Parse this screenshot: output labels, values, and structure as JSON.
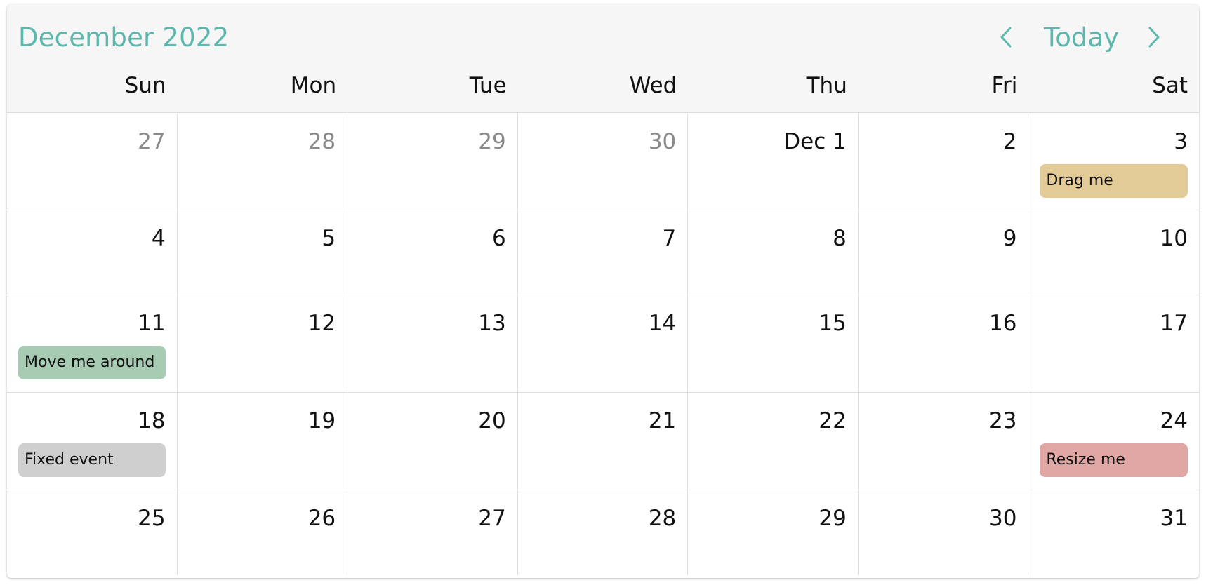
{
  "header": {
    "title": "December 2022",
    "today_label": "Today",
    "prev_icon": "chevron-left-icon",
    "next_icon": "chevron-right-icon",
    "accent_color": "#5cb8ad"
  },
  "weekdays": [
    "Sun",
    "Mon",
    "Tue",
    "Wed",
    "Thu",
    "Fri",
    "Sat"
  ],
  "weeks": [
    [
      {
        "label": "27",
        "muted": true
      },
      {
        "label": "28",
        "muted": true
      },
      {
        "label": "29",
        "muted": true
      },
      {
        "label": "30",
        "muted": true
      },
      {
        "label": "Dec 1"
      },
      {
        "label": "2"
      },
      {
        "label": "3",
        "event": {
          "title": "Drag me",
          "color": "#e3cb98"
        }
      }
    ],
    [
      {
        "label": "4"
      },
      {
        "label": "5"
      },
      {
        "label": "6"
      },
      {
        "label": "7"
      },
      {
        "label": "8"
      },
      {
        "label": "9"
      },
      {
        "label": "10"
      }
    ],
    [
      {
        "label": "11",
        "event": {
          "title": "Move me around",
          "color": "#a8cbb4"
        }
      },
      {
        "label": "12"
      },
      {
        "label": "13"
      },
      {
        "label": "14"
      },
      {
        "label": "15"
      },
      {
        "label": "16"
      },
      {
        "label": "17"
      }
    ],
    [
      {
        "label": "18",
        "event": {
          "title": "Fixed event",
          "color": "#cfcfcf"
        }
      },
      {
        "label": "19"
      },
      {
        "label": "20"
      },
      {
        "label": "21"
      },
      {
        "label": "22"
      },
      {
        "label": "23"
      },
      {
        "label": "24",
        "event": {
          "title": "Resize me",
          "color": "#e0a7a5"
        }
      }
    ],
    [
      {
        "label": "25"
      },
      {
        "label": "26"
      },
      {
        "label": "27"
      },
      {
        "label": "28"
      },
      {
        "label": "29"
      },
      {
        "label": "30"
      },
      {
        "label": "31"
      }
    ]
  ]
}
